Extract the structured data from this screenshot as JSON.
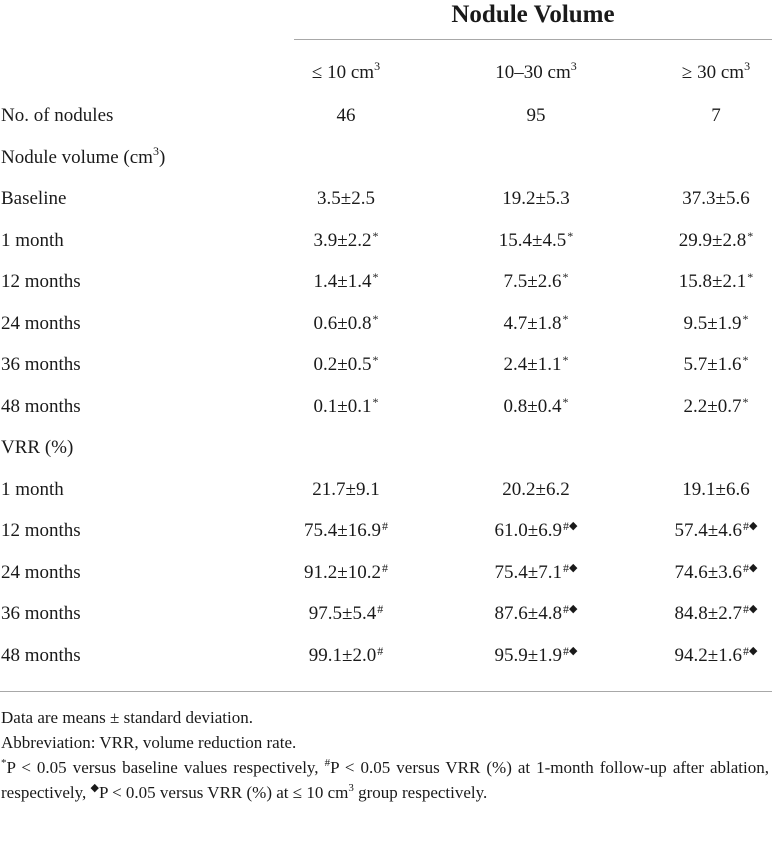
{
  "table": {
    "group_title": "Nodule Volume",
    "columns": [
      {
        "label": "≤ 10 cm",
        "sup": "3"
      },
      {
        "label": "10–30 cm",
        "sup": "3"
      },
      {
        "label": "≥ 30 cm",
        "sup": "3"
      }
    ],
    "rows": [
      {
        "label": "No. of nodules",
        "values": [
          "46",
          "95",
          "7"
        ],
        "marks": [
          "",
          "",
          ""
        ]
      },
      {
        "label": "Nodule volume (cm",
        "label_sup": "3",
        "label_after": ")",
        "values": [
          "",
          "",
          ""
        ],
        "marks": [
          "",
          "",
          ""
        ]
      },
      {
        "label": "Baseline",
        "values": [
          "3.5±2.5",
          "19.2±5.3",
          "37.3±5.6"
        ],
        "marks": [
          "",
          "",
          ""
        ]
      },
      {
        "label": "1 month",
        "values": [
          "3.9±2.2",
          "15.4±4.5",
          "29.9±2.8"
        ],
        "marks": [
          "*",
          "*",
          "*"
        ]
      },
      {
        "label": "12 months",
        "values": [
          "1.4±1.4",
          "7.5±2.6",
          "15.8±2.1"
        ],
        "marks": [
          "*",
          "*",
          "*"
        ]
      },
      {
        "label": "24 months",
        "values": [
          "0.6±0.8",
          "4.7±1.8",
          "9.5±1.9"
        ],
        "marks": [
          "*",
          "*",
          "*"
        ]
      },
      {
        "label": "36 months",
        "values": [
          "0.2±0.5",
          "2.4±1.1",
          "5.7±1.6"
        ],
        "marks": [
          "*",
          "*",
          "*"
        ]
      },
      {
        "label": "48 months",
        "values": [
          "0.1±0.1",
          "0.8±0.4",
          "2.2±0.7"
        ],
        "marks": [
          "*",
          "*",
          "*"
        ]
      },
      {
        "label": "VRR (%)",
        "values": [
          "",
          "",
          ""
        ],
        "marks": [
          "",
          "",
          ""
        ]
      },
      {
        "label": "1 month",
        "values": [
          "21.7±9.1",
          "20.2±6.2",
          "19.1±6.6"
        ],
        "marks": [
          "",
          "",
          ""
        ]
      },
      {
        "label": "12 months",
        "values": [
          "75.4±16.9",
          "61.0±6.9",
          "57.4±4.6"
        ],
        "marks": [
          "#",
          "#",
          "#"
        ],
        "diamonds": [
          false,
          true,
          true
        ]
      },
      {
        "label": "24 months",
        "values": [
          "91.2±10.2",
          "75.4±7.1",
          "74.6±3.6"
        ],
        "marks": [
          "#",
          "#",
          "#"
        ],
        "diamonds": [
          false,
          true,
          true
        ]
      },
      {
        "label": "36 months",
        "values": [
          "97.5±5.4",
          "87.6±4.8",
          "84.8±2.7"
        ],
        "marks": [
          "#",
          "#",
          "#"
        ],
        "diamonds": [
          false,
          true,
          true
        ]
      },
      {
        "label": "48 months",
        "values": [
          "99.1±2.0",
          "95.9±1.9",
          "94.2±1.6"
        ],
        "marks": [
          "#",
          "#",
          "#"
        ],
        "diamonds": [
          false,
          true,
          true
        ]
      }
    ]
  },
  "footnotes": {
    "line1": "Data are means ± standard deviation.",
    "line2": "Abbreviation: VRR, volume reduction rate.",
    "note_parts": {
      "star": "*",
      "a": "P < 0.05 versus baseline values respectively, ",
      "hash": "#",
      "b": "P < 0.05 versus VRR (%) at 1-month follow-up after ablation, respectively, ",
      "diamond": "◆",
      "c": "P < 0.05 versus VRR (%) at ≤ 10 cm",
      "cm_sup": "3",
      "d": " group respectively."
    }
  }
}
